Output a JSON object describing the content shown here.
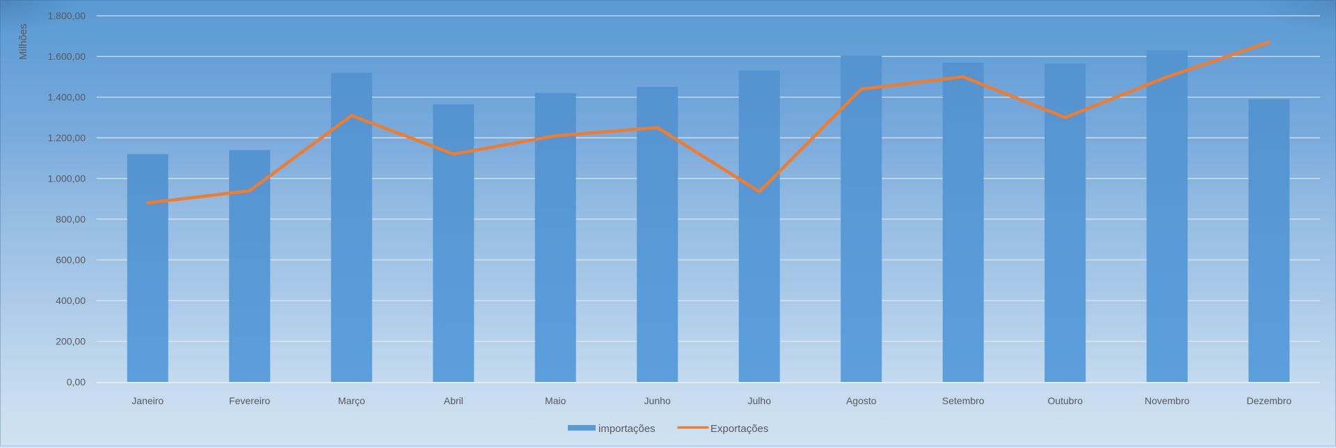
{
  "chart_data": {
    "type": "combo-bar-line",
    "categories": [
      "Janeiro",
      "Fevereiro",
      "Março",
      "Abril",
      "Maio",
      "Junho",
      "Julho",
      "Agosto",
      "Setembro",
      "Outubro",
      "Novembro",
      "Dezembro"
    ],
    "series": [
      {
        "name": "importações",
        "type": "bar",
        "color": "#5b9bd5",
        "values": [
          1120,
          1140,
          1520,
          1365,
          1420,
          1450,
          1530,
          1605,
          1570,
          1565,
          1630,
          1390
        ]
      },
      {
        "name": "Exportações",
        "type": "line",
        "color": "#ed7d31",
        "values": [
          880,
          940,
          1310,
          1120,
          1210,
          1250,
          935,
          1440,
          1500,
          1300,
          1500,
          1670
        ]
      }
    ],
    "title": "",
    "xlabel": "",
    "ylabel": "Milhões",
    "ylim": [
      0,
      1800
    ],
    "ytick_step": 200,
    "ytick_labels": [
      "0,00",
      "200,00",
      "400,00",
      "600,00",
      "800,00",
      "1.000,00",
      "1.200,00",
      "1.400,00",
      "1.600,00",
      "1.800,00"
    ],
    "grid": true,
    "legend_position": "bottom-center"
  },
  "colors": {
    "bar": "#5b9bd5",
    "bar_top": "#5493cf",
    "bar_bottom": "#5c9fdd",
    "line": "#ed7d31",
    "text": "#595959",
    "gridline": "#e9eef4",
    "background_top": "#5a99d3",
    "background_bottom": "#cfe2f3"
  }
}
